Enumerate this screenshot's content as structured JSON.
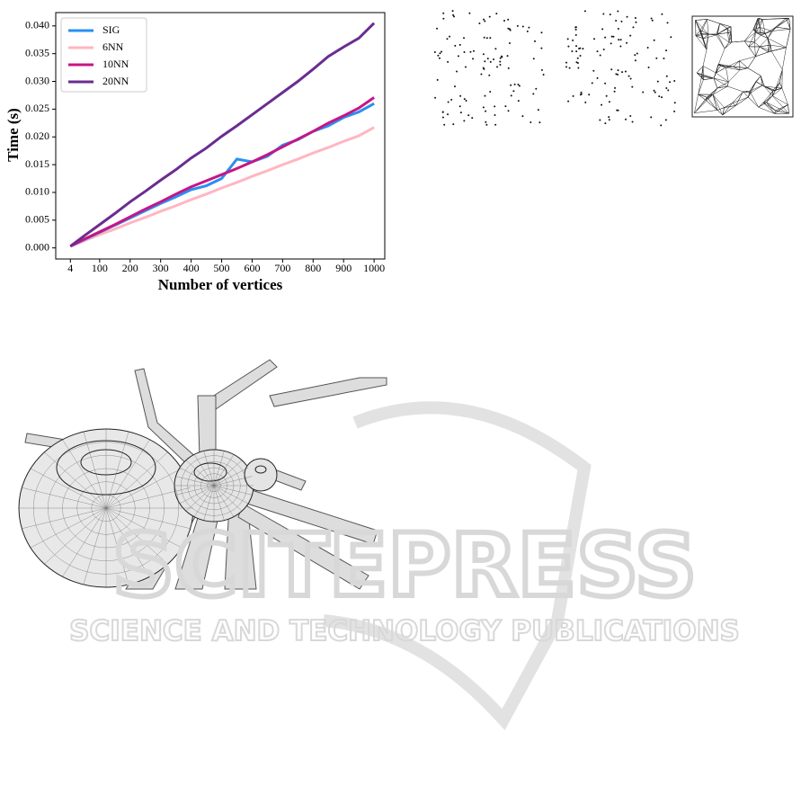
{
  "chart_data": {
    "type": "line",
    "xlabel": "Number of vertices",
    "ylabel": "Time (s)",
    "x": [
      4,
      50,
      100,
      150,
      200,
      250,
      300,
      350,
      400,
      450,
      500,
      550,
      600,
      650,
      700,
      750,
      800,
      850,
      900,
      950,
      1000
    ],
    "series": [
      {
        "name": "SIG",
        "color": "#2a8ff0",
        "values": [
          0.0003,
          0.0015,
          0.0028,
          0.0041,
          0.0054,
          0.0067,
          0.008,
          0.0092,
          0.0105,
          0.0112,
          0.0125,
          0.016,
          0.0155,
          0.0165,
          0.0185,
          0.0195,
          0.021,
          0.022,
          0.0235,
          0.0245,
          0.026
        ]
      },
      {
        "name": "6NN",
        "color": "#ffb6c1",
        "values": [
          0.0003,
          0.0013,
          0.0024,
          0.0034,
          0.0045,
          0.0055,
          0.0066,
          0.0076,
          0.0087,
          0.0097,
          0.0108,
          0.0118,
          0.0129,
          0.0139,
          0.015,
          0.016,
          0.0171,
          0.0181,
          0.0192,
          0.0202,
          0.0217
        ]
      },
      {
        "name": "10NN",
        "color": "#c71585",
        "values": [
          0.0003,
          0.0016,
          0.0029,
          0.0042,
          0.0056,
          0.007,
          0.0083,
          0.0097,
          0.011,
          0.0121,
          0.0132,
          0.0143,
          0.0155,
          0.0168,
          0.0182,
          0.0196,
          0.021,
          0.0225,
          0.0238,
          0.0252,
          0.0271
        ]
      },
      {
        "name": "20NN",
        "color": "#6a2c91",
        "values": [
          0.0003,
          0.0022,
          0.0042,
          0.0062,
          0.0083,
          0.0102,
          0.0122,
          0.0141,
          0.0162,
          0.018,
          0.0201,
          0.022,
          0.024,
          0.026,
          0.028,
          0.03,
          0.0322,
          0.0345,
          0.0362,
          0.0378,
          0.0405
        ]
      }
    ],
    "xlim": [
      -44,
      1035
    ],
    "ylim": [
      -0.002,
      0.0424
    ],
    "xticks": [
      4,
      100,
      200,
      300,
      400,
      500,
      600,
      700,
      800,
      900,
      1000
    ],
    "yticks": [
      {
        "value": 0,
        "label": "0.000"
      },
      {
        "value": 0.005,
        "label": "0.005"
      },
      {
        "value": 0.01,
        "label": "0.010"
      },
      {
        "value": 0.015,
        "label": "0.015"
      },
      {
        "value": 0.02,
        "label": "0.020"
      },
      {
        "value": 0.025,
        "label": "0.025"
      },
      {
        "value": 0.03,
        "label": "0.030"
      },
      {
        "value": 0.035,
        "label": "0.035"
      },
      {
        "value": 0.04,
        "label": "0.040"
      }
    ],
    "legend": "upper left"
  },
  "watermark": {
    "logo": "SCITEPRESS",
    "tagline": "SCIENCE AND TECHNOLOGY PUBLICATIONS"
  }
}
